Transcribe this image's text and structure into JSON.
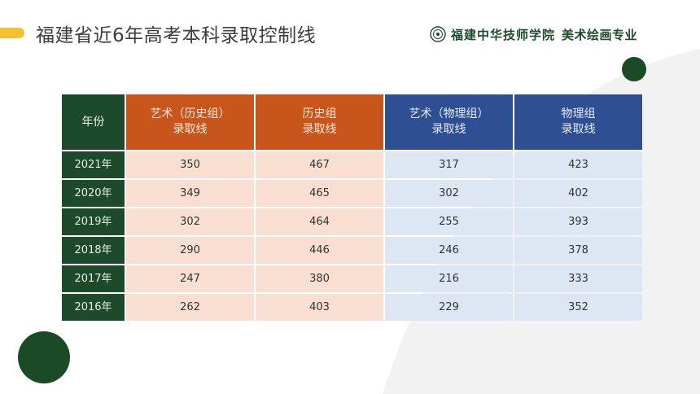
{
  "slide": {
    "title": "福建省近6年高考本科录取控制线",
    "brand_school": "福建中华技师学院",
    "brand_major": "美术绘画专业",
    "accent_color": "#f2c230",
    "primary_green": "#1d4a2a",
    "orange": "#c8561c",
    "blue": "#2f4f93"
  },
  "table": {
    "headers": [
      {
        "lines": [
          "年份"
        ]
      },
      {
        "lines": [
          "艺术（历史组）",
          "录取线"
        ]
      },
      {
        "lines": [
          "历史组",
          "录取线"
        ]
      },
      {
        "lines": [
          "艺术（物理组）",
          "录取线"
        ]
      },
      {
        "lines": [
          "物理组",
          "录取线"
        ]
      }
    ],
    "rows": [
      [
        "2021年",
        "350",
        "467",
        "317",
        "423"
      ],
      [
        "2020年",
        "349",
        "465",
        "302",
        "402"
      ],
      [
        "2019年",
        "302",
        "464",
        "255",
        "393"
      ],
      [
        "2018年",
        "290",
        "446",
        "246",
        "378"
      ],
      [
        "2017年",
        "247",
        "380",
        "216",
        "333"
      ],
      [
        "2016年",
        "262",
        "403",
        "229",
        "352"
      ]
    ]
  }
}
